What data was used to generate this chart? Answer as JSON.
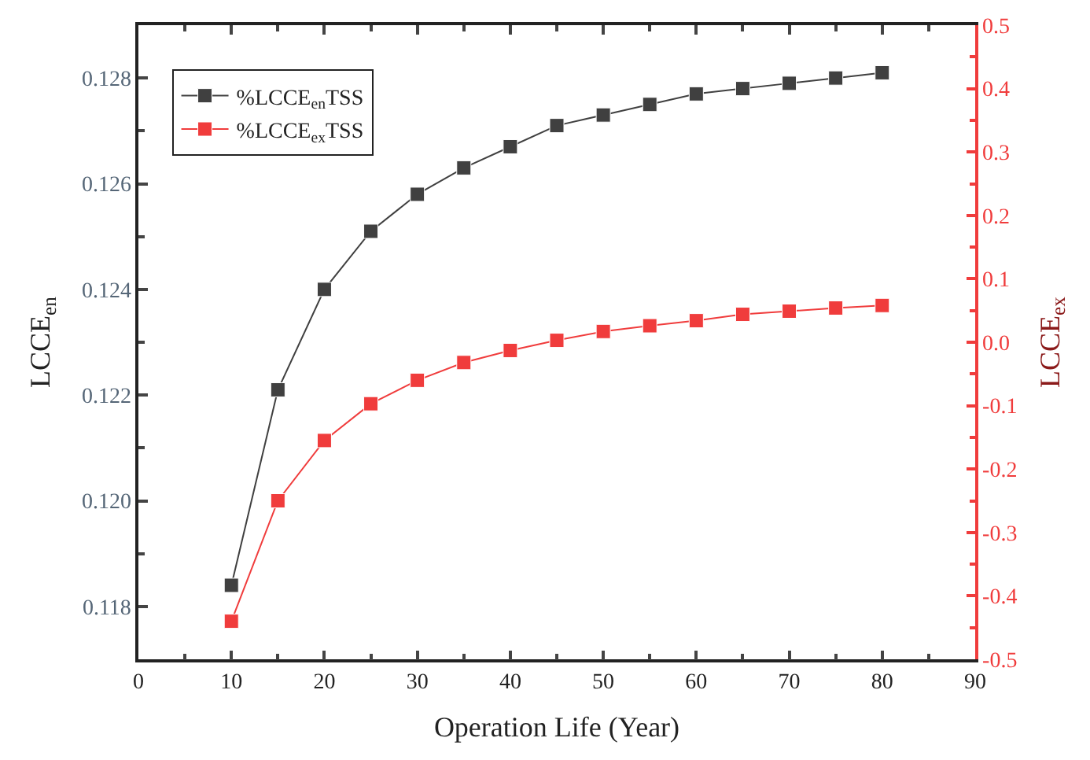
{
  "chart_data": {
    "type": "line",
    "xlabel": "Operation Life (Year)",
    "ylabel": "LCCE$_{en}$",
    "y2label": "LCCE$_{ex}$",
    "x": [
      10,
      15,
      20,
      25,
      30,
      35,
      40,
      45,
      50,
      55,
      60,
      65,
      70,
      75,
      80
    ],
    "series": [
      {
        "name": "%LCCE$_{en}$TSS",
        "color": "#404040",
        "values": [
          0.1184,
          0.1221,
          0.124,
          0.1251,
          0.1258,
          0.1263,
          0.1267,
          0.1271,
          0.1273,
          0.1275,
          0.1277,
          0.1278,
          0.1279,
          0.128,
          0.1281
        ]
      },
      {
        "name": "%LCCE$_{ex}$TSS",
        "color": "#f03c3c",
        "axis": "y2",
        "values": [
          -0.44,
          -0.25,
          -0.155,
          -0.097,
          -0.06,
          -0.032,
          -0.013,
          0.003,
          0.017,
          0.026,
          0.034,
          0.044,
          0.049,
          0.054,
          0.058
        ]
      }
    ],
    "xlim": [
      0,
      90
    ],
    "xticks": [
      0,
      10,
      20,
      30,
      40,
      50,
      60,
      70,
      80,
      90
    ],
    "ylim": [
      0.117,
      0.129
    ],
    "yticks": [
      0.118,
      {
        "value": 0.12,
        "label": "0.120"
      },
      0.122,
      0.124,
      0.126,
      0.128
    ],
    "y2lim": [
      -0.5,
      0.5
    ],
    "y2ticks": [
      -0.5,
      -0.4,
      -0.3,
      -0.2,
      -0.1,
      {
        "value": 0,
        "label": "0.0"
      },
      0.1,
      0.2,
      0.3,
      0.4,
      0.5
    ],
    "marker": "square",
    "line_style": "solid",
    "legend": "top left"
  }
}
